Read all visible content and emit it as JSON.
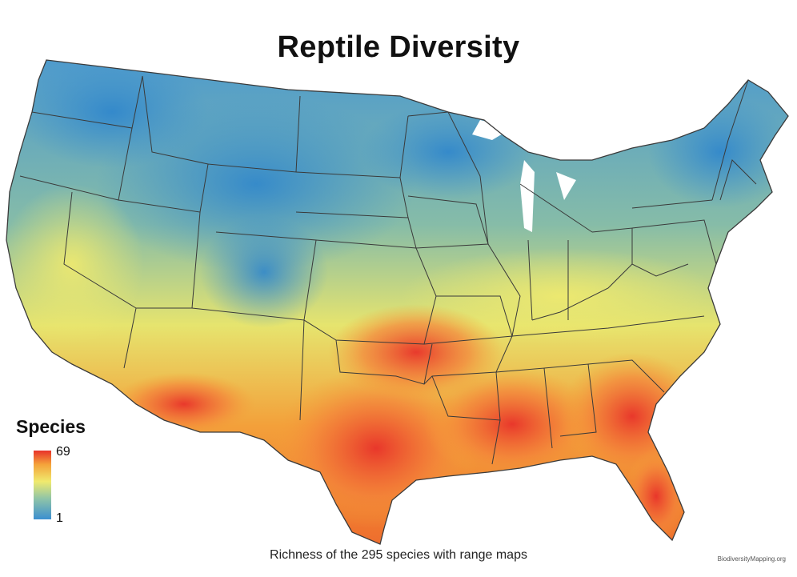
{
  "map": {
    "title": "Reptile Diversity",
    "caption": "Richness of the 295 species with range maps",
    "credit": "BiodiversityMapping.org"
  },
  "legend": {
    "title": "Species",
    "max_label": "69",
    "min_label": "1",
    "min_value": 1,
    "max_value": 69,
    "color_ramp": [
      "#3b8fd0",
      "#8fc4a8",
      "#f0ea6e",
      "#f4a23a",
      "#e8322a"
    ]
  },
  "colors": {
    "low": "#3b8fd0",
    "mid_low": "#8fc4a8",
    "mid": "#f0ea6e",
    "mid_high": "#f4a23a",
    "high": "#e8322a",
    "state_borders": "#3a3a3a"
  }
}
